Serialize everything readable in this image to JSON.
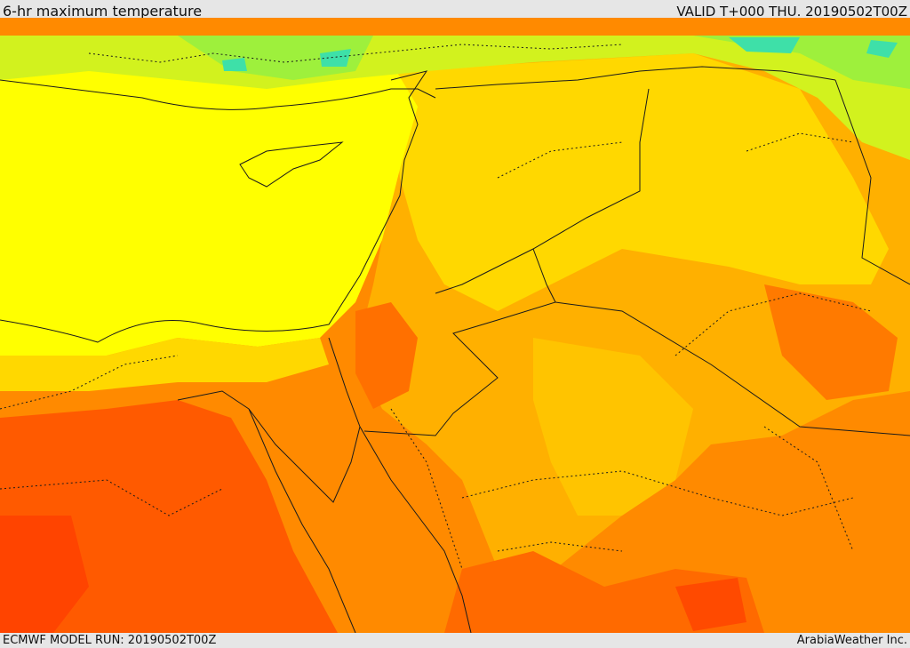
{
  "header": {
    "title": "6-hr maximum temperature",
    "valid_label": "VALID T+000 THU. 20190502T00Z"
  },
  "footer": {
    "model_run": "ECMWF MODEL RUN: 20190502T00Z",
    "credit": "ArabiaWeather Inc."
  },
  "colors": {
    "cold_cyan": "#3ee0a8",
    "cool_green": "#9ef03c",
    "light_green": "#d2f21e",
    "yellow": "#ffff00",
    "gold": "#ffd800",
    "amber": "#ffb000",
    "orange": "#ff8a00",
    "hot_orange": "#ff5a00",
    "hottest": "#ff3600",
    "border_line": "#1a1a1a"
  }
}
